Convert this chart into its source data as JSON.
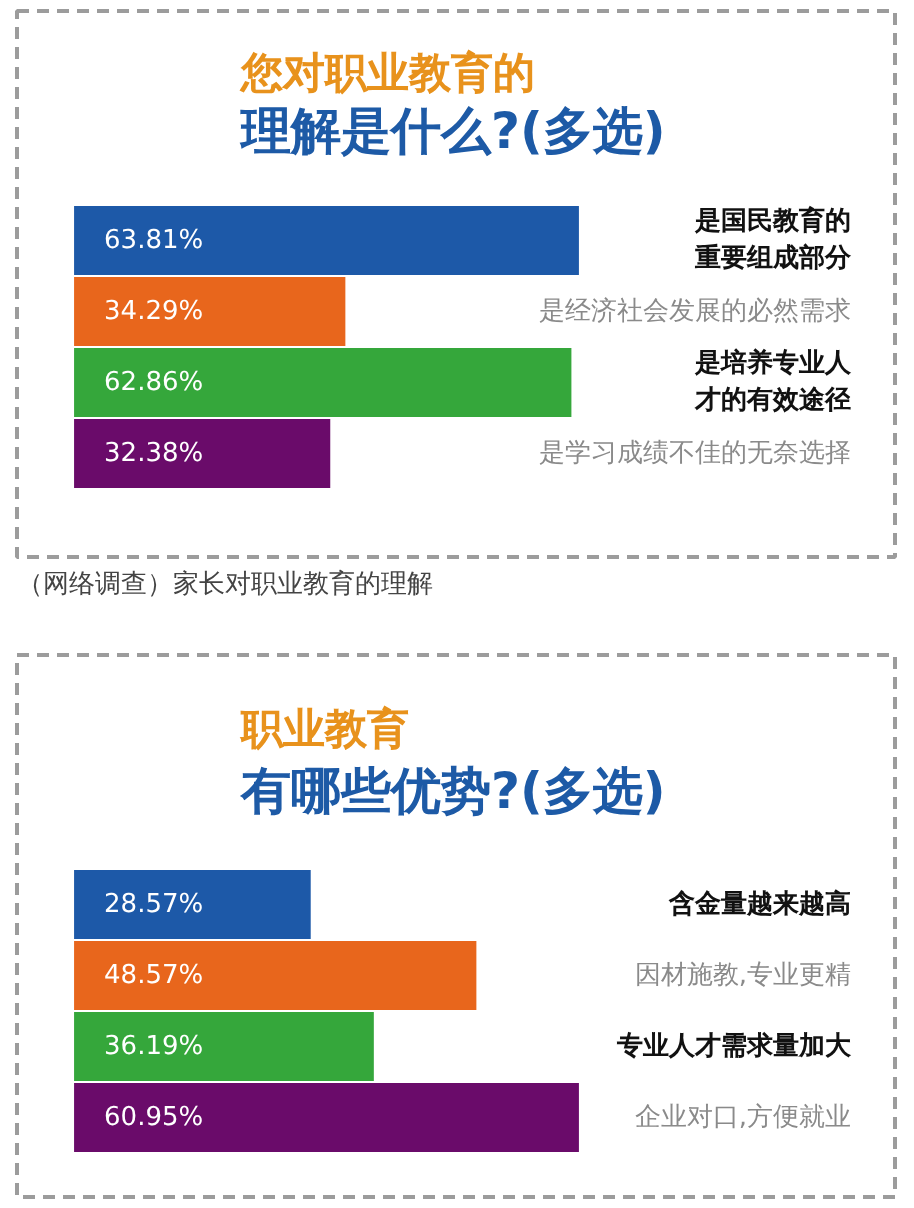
{
  "chart_data": [
    {
      "type": "bar",
      "orientation": "horizontal",
      "title": "您对职业教育的",
      "subtitle": "理解是什么?(多选)",
      "tick_labels": "y",
      "categories": [
        "是国民教育的重要组成部分",
        "是经济社会发展的必然需求",
        "是培养专业人才的有效途径",
        "是学习成绩不佳的无奈选择"
      ],
      "values": [
        63.81,
        34.29,
        62.86,
        32.38
      ],
      "colors": [
        "#1d59a8",
        "#e8661c",
        "#35a73b",
        "#6a0b6a"
      ],
      "value_labels": [
        "63.81%",
        "34.29%",
        "62.86%",
        "32.38%"
      ],
      "annotations": [
        "（网络调查）家长对职业教育的理解"
      ]
    },
    {
      "type": "bar",
      "orientation": "horizontal",
      "title": "职业教育",
      "subtitle": "有哪些优势?(多选)",
      "tick_labels": "y",
      "categories": [
        "含金量越来越高",
        "因材施教,专业更精",
        "专业人才需求量加大",
        "企业对口,方便就业"
      ],
      "values": [
        28.57,
        48.57,
        36.19,
        60.95
      ],
      "colors": [
        "#1d59a8",
        "#e8661c",
        "#35a73b",
        "#6a0b6a"
      ],
      "value_labels": [
        "28.57%",
        "48.57%",
        "36.19%",
        "60.95%"
      ]
    }
  ]
}
